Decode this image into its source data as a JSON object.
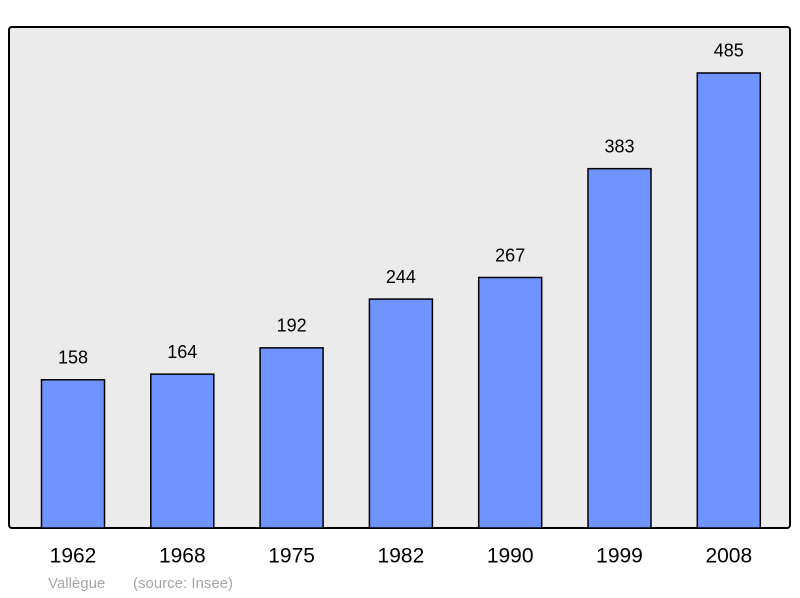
{
  "chart_data": {
    "type": "bar",
    "categories": [
      "1962",
      "1968",
      "1975",
      "1982",
      "1990",
      "1999",
      "2008"
    ],
    "values": [
      158,
      164,
      192,
      244,
      267,
      383,
      485
    ],
    "color": "#7094ff",
    "ylim": [
      0,
      534
    ],
    "annotations": [
      "Vallègue",
      "(source: Insee)"
    ]
  }
}
